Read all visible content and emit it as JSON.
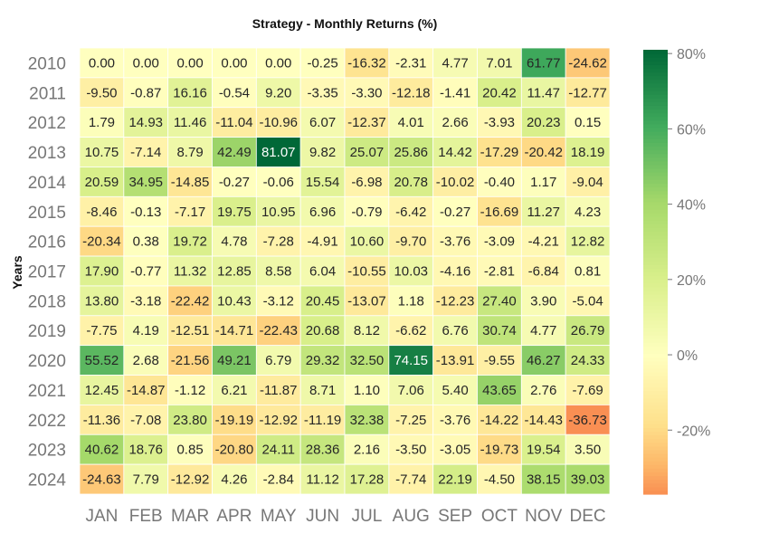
{
  "chart_data": {
    "type": "heatmap",
    "title": "Strategy - Monthly Returns (%)",
    "ylabel": "Years",
    "xlabel": "",
    "x": [
      "JAN",
      "FEB",
      "MAR",
      "APR",
      "MAY",
      "JUN",
      "JUL",
      "AUG",
      "SEP",
      "OCT",
      "NOV",
      "DEC"
    ],
    "y": [
      "2010",
      "2011",
      "2012",
      "2013",
      "2014",
      "2015",
      "2016",
      "2017",
      "2018",
      "2019",
      "2020",
      "2021",
      "2022",
      "2023",
      "2024"
    ],
    "values": [
      [
        0.0,
        0.0,
        0.0,
        0.0,
        0.0,
        -0.25,
        -16.32,
        -2.31,
        4.77,
        7.01,
        61.77,
        -24.62
      ],
      [
        -9.5,
        -0.87,
        16.16,
        -0.54,
        9.2,
        -3.35,
        -3.3,
        -12.18,
        -1.41,
        20.42,
        11.47,
        -12.77
      ],
      [
        1.79,
        14.93,
        11.46,
        -11.04,
        -10.96,
        6.07,
        -12.37,
        4.01,
        2.66,
        -3.93,
        20.23,
        0.15
      ],
      [
        10.75,
        -7.14,
        8.79,
        42.49,
        81.07,
        9.82,
        25.07,
        25.86,
        14.42,
        -17.29,
        -20.42,
        18.19
      ],
      [
        20.59,
        34.95,
        -14.85,
        -0.27,
        -0.06,
        15.54,
        -6.98,
        20.78,
        -10.02,
        -0.4,
        1.17,
        -9.04
      ],
      [
        -8.46,
        -0.13,
        -7.17,
        19.75,
        10.95,
        6.96,
        -0.79,
        -6.42,
        -0.27,
        -16.69,
        11.27,
        4.23
      ],
      [
        -20.34,
        0.38,
        19.72,
        4.78,
        -7.28,
        -4.91,
        10.6,
        -9.7,
        -3.76,
        -3.09,
        -4.21,
        12.82
      ],
      [
        17.9,
        -0.77,
        11.32,
        12.85,
        8.58,
        6.04,
        -10.55,
        10.03,
        -4.16,
        -2.81,
        -6.84,
        0.81
      ],
      [
        13.8,
        -3.18,
        -22.42,
        10.43,
        -3.12,
        20.45,
        -13.07,
        1.18,
        -12.23,
        27.4,
        3.9,
        -5.04
      ],
      [
        -7.75,
        4.19,
        -12.51,
        -14.71,
        -22.43,
        20.68,
        8.12,
        -6.62,
        6.76,
        30.74,
        4.77,
        26.79
      ],
      [
        55.52,
        2.68,
        -21.56,
        49.21,
        6.79,
        29.32,
        32.5,
        74.15,
        -13.91,
        -9.55,
        46.27,
        24.33
      ],
      [
        12.45,
        -14.87,
        -1.12,
        6.21,
        -11.87,
        8.71,
        1.1,
        7.06,
        5.4,
        43.65,
        2.76,
        -7.69
      ],
      [
        -11.36,
        -7.08,
        23.8,
        -19.19,
        -12.92,
        -11.19,
        32.38,
        -7.25,
        -3.76,
        -14.22,
        -14.43,
        -36.73
      ],
      [
        40.62,
        18.76,
        0.85,
        -20.8,
        24.11,
        28.36,
        2.16,
        -3.5,
        -3.05,
        -19.73,
        19.54,
        3.5
      ],
      [
        -24.63,
        7.79,
        -12.92,
        4.26,
        -2.84,
        11.12,
        17.28,
        -7.74,
        22.19,
        -4.5,
        38.15,
        39.03
      ]
    ],
    "colorbar": {
      "min": -37,
      "max": 81,
      "center": 0,
      "ticks": [
        -20,
        0,
        20,
        40,
        60,
        80
      ],
      "tick_labels": [
        "-20%",
        "0%",
        "20%",
        "40%",
        "60%",
        "80%"
      ],
      "colors": {
        "low": "#f98e52",
        "center": "#ffffbf",
        "high": "#006837"
      }
    },
    "grid": false,
    "legend": "right"
  }
}
